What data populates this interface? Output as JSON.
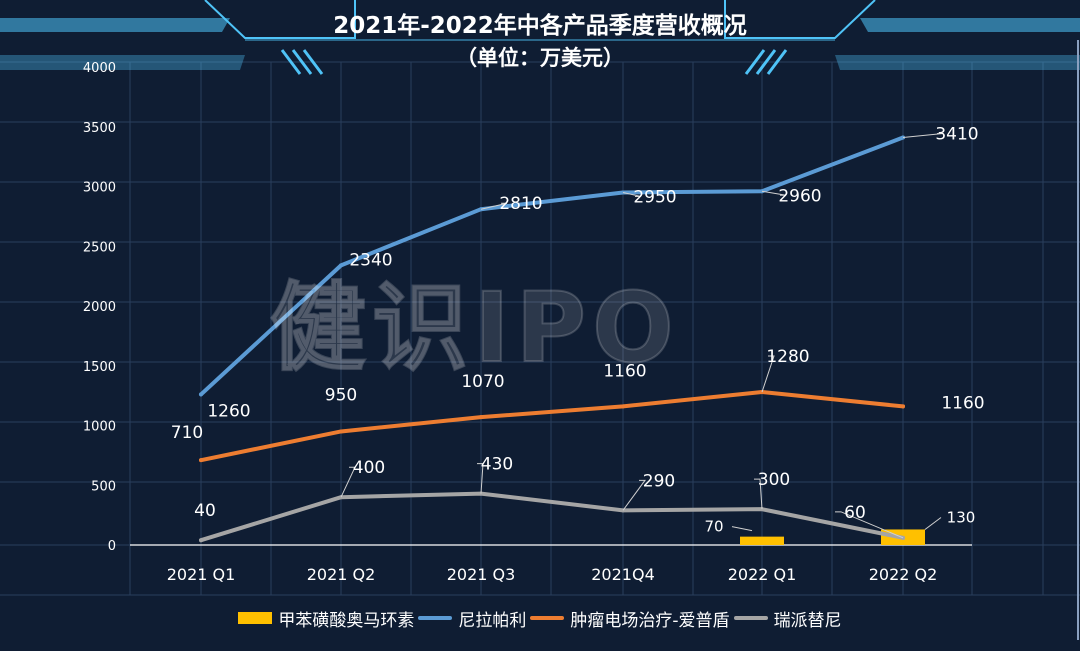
{
  "title": "2021年-2022年中各产品季度营收概况",
  "subtitle": "（单位：万美元）",
  "watermark_text": "健识IPO",
  "colors": {
    "background": "#0f1d33",
    "grid": "#2a3e5c",
    "bar": "#ffc000",
    "niraparib": "#5b9bd5",
    "tumor_field": "#ed7d31",
    "ripretinib": "#a5a5a5",
    "accent": "#4fc3f7"
  },
  "chart_data": {
    "type": "bar",
    "categories": [
      "2021 Q1",
      "2021 Q2",
      "2021 Q3",
      "2021Q4",
      "2022 Q1",
      "2022 Q2"
    ],
    "ylim": [
      0,
      4000
    ],
    "y_ticks": [
      0,
      500,
      1000,
      1500,
      2000,
      2500,
      3000,
      3500,
      4000
    ],
    "grid": true,
    "legend_position": "bottom",
    "series": [
      {
        "name": "甲苯磺酸奥马环素",
        "type": "bar",
        "values": [
          null,
          null,
          null,
          null,
          70,
          130
        ],
        "value_labels": [
          "",
          "",
          "",
          "",
          "70",
          "130"
        ],
        "color": "#ffc000"
      },
      {
        "name": "尼拉帕利",
        "type": "line",
        "values": [
          1260,
          2340,
          2810,
          2950,
          2960,
          3410
        ],
        "value_labels": [
          "1260",
          "2340",
          "2810",
          "2950",
          "2960",
          "3410"
        ],
        "color": "#5b9bd5"
      },
      {
        "name": "肿瘤电场治疗-爱普盾",
        "type": "line",
        "values": [
          710,
          950,
          1070,
          1160,
          1280,
          1160
        ],
        "value_labels": [
          "710",
          "950",
          "1070",
          "1160",
          "1280",
          "1160"
        ],
        "color": "#ed7d31"
      },
      {
        "name": "瑞派替尼",
        "type": "line",
        "values": [
          40,
          400,
          430,
          290,
          300,
          60
        ],
        "value_labels": [
          "40",
          "400",
          "430",
          "290",
          "300",
          "60"
        ],
        "color": "#a5a5a5"
      }
    ]
  }
}
